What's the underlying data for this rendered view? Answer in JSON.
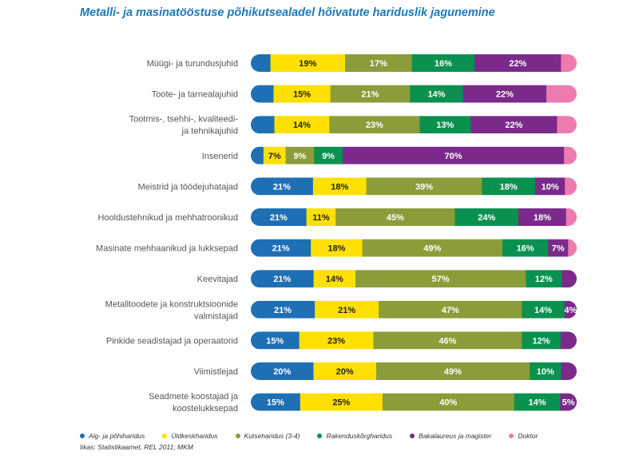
{
  "title": "Metalli- ja masinatööstuse põhikutsealadel hõivatute hariduslik jagunemine",
  "source": "Iikas: Statistikaamet, REL 2011; MKM",
  "colors": {
    "alg": "#1f6fb5",
    "yld": "#ffe000",
    "kutse": "#8b9d3a",
    "rakendus": "#0a9150",
    "baka": "#7b2a8c",
    "doktor": "#ee7bb0"
  },
  "chart_data": {
    "type": "bar",
    "orientation": "horizontal-stacked",
    "title": "Metalli- ja masinatööstuse põhikutsealadel hõivatute hariduslik jagunemine",
    "legend_position": "bottom",
    "series": [
      {
        "name": "Alg- ja põhiharidus",
        "color": "#1f6fb5"
      },
      {
        "name": "Üldkeskharidus",
        "color": "#ffe000"
      },
      {
        "name": "Kutseharidus (3-4)",
        "color": "#8b9d3a"
      },
      {
        "name": "Rakenduskõrgharidus",
        "color": "#0a9150"
      },
      {
        "name": "Bakalaureus ja magister",
        "color": "#7b2a8c"
      },
      {
        "name": "Doktor",
        "color": "#ee7bb0"
      }
    ],
    "rows": [
      {
        "label": [
          "Müügi- ja turundusjuhid"
        ],
        "values": [
          5,
          19,
          17,
          16,
          22,
          4
        ],
        "labels": [
          "",
          "19%",
          "17%",
          "16%",
          "22%",
          ""
        ]
      },
      {
        "label": [
          "Toote- ja tarnealajuhid"
        ],
        "values": [
          6,
          15,
          21,
          14,
          22,
          8
        ],
        "labels": [
          "",
          "15%",
          "21%",
          "14%",
          "22%",
          ""
        ]
      },
      {
        "label": [
          "Tootmis-, tsehhi-, kvaliteedi-",
          "ja tehnikajuhid"
        ],
        "values": [
          6,
          14,
          23,
          13,
          22,
          5
        ],
        "labels": [
          "",
          "14%",
          "23%",
          "13%",
          "22%",
          ""
        ]
      },
      {
        "label": [
          "Insenerid"
        ],
        "values": [
          4,
          7,
          9,
          9,
          70,
          4
        ],
        "labels": [
          "",
          "7%",
          "9%",
          "9%",
          "70%",
          ""
        ]
      },
      {
        "label": [
          "Meistrid ja töödejuhatajad"
        ],
        "values": [
          21,
          18,
          39,
          18,
          10,
          4
        ],
        "labels": [
          "21%",
          "18%",
          "39%",
          "18%",
          "10%",
          ""
        ]
      },
      {
        "label": [
          "Hooldustehnikud ja mehhatroonikud"
        ],
        "values": [
          21,
          11,
          45,
          24,
          18,
          4
        ],
        "labels": [
          "21%",
          "11%",
          "45%",
          "24%",
          "18%",
          ""
        ]
      },
      {
        "label": [
          "Masinate mehhaanikud ja lukksepad"
        ],
        "values": [
          21,
          18,
          49,
          16,
          7,
          3
        ],
        "labels": [
          "21%",
          "18%",
          "49%",
          "16%",
          "7%",
          ""
        ]
      },
      {
        "label": [
          "Keevitajad"
        ],
        "values": [
          21,
          14,
          57,
          12,
          5,
          0
        ],
        "labels": [
          "21%",
          "14%",
          "57%",
          "12%",
          "",
          ""
        ]
      },
      {
        "label": [
          "Metalltoodete ja konstruktsioonide",
          "valmistajad"
        ],
        "values": [
          21,
          21,
          47,
          14,
          4,
          0
        ],
        "labels": [
          "21%",
          "21%",
          "47%",
          "14%",
          "4%",
          ""
        ]
      },
      {
        "label": [
          "Pinkide seadistajad ja operaatorid"
        ],
        "values": [
          15,
          23,
          46,
          12,
          5,
          0
        ],
        "labels": [
          "15%",
          "23%",
          "46%",
          "12%",
          "",
          ""
        ]
      },
      {
        "label": [
          "Viimistlejad"
        ],
        "values": [
          20,
          20,
          49,
          10,
          5,
          0
        ],
        "labels": [
          "20%",
          "20%",
          "49%",
          "10%",
          "",
          ""
        ]
      },
      {
        "label": [
          "Seadmete koostajad ja",
          "koostelukksepad"
        ],
        "values": [
          15,
          25,
          40,
          14,
          5,
          0
        ],
        "labels": [
          "15%",
          "25%",
          "40%",
          "14%",
          "5%",
          ""
        ]
      }
    ]
  }
}
